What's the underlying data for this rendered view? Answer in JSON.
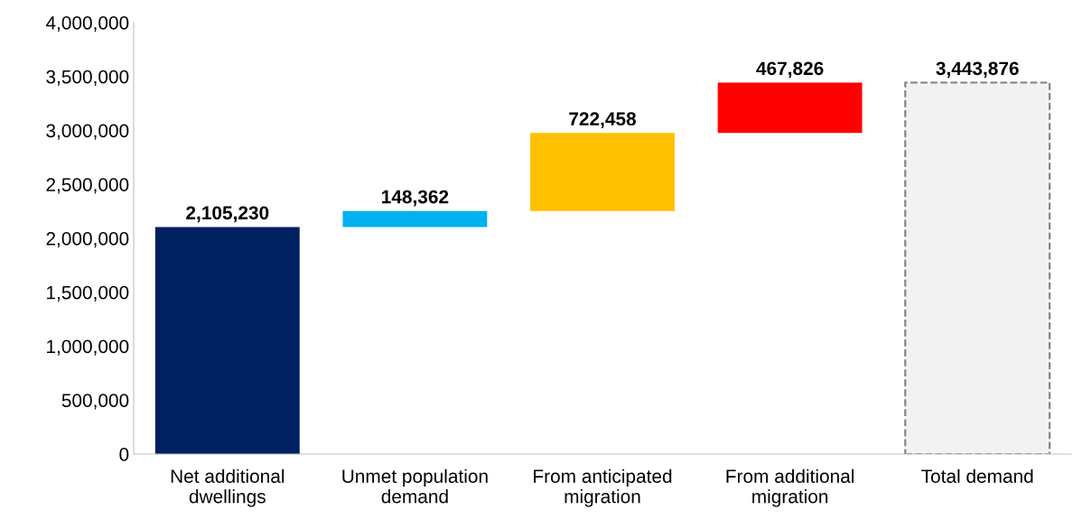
{
  "chart_data": {
    "type": "bar",
    "categories": [
      "Net additional\ndwellings",
      "Unmet population\ndemand",
      "From anticipated\nmigration",
      "From additional\nmigration",
      "Total demand"
    ],
    "base": [
      0,
      2105230,
      2253592,
      2976050,
      0
    ],
    "values": [
      2105230,
      148362,
      722458,
      467826,
      3443876
    ],
    "colors": [
      "#002060",
      "#00b0f0",
      "#ffc000",
      "#ff0000",
      "#f2f2f2"
    ],
    "value_labels": [
      "2,105,230",
      "148,362",
      "722,458",
      "467,826",
      "3,443,876"
    ],
    "ylim": [
      0,
      4000000
    ],
    "yticks": [
      {
        "value": 0,
        "label": "0"
      },
      {
        "value": 500000,
        "label": "500,000"
      },
      {
        "value": 1000000,
        "label": "1,000,000"
      },
      {
        "value": 1500000,
        "label": "1,500,000"
      },
      {
        "value": 2000000,
        "label": "2,000,000"
      },
      {
        "value": 2500000,
        "label": "2,500,000"
      },
      {
        "value": 3000000,
        "label": "3,000,000"
      },
      {
        "value": 3500000,
        "label": "3,500,000"
      },
      {
        "value": 4000000,
        "label": "4,000,000"
      }
    ],
    "grid": false,
    "legend": false
  }
}
